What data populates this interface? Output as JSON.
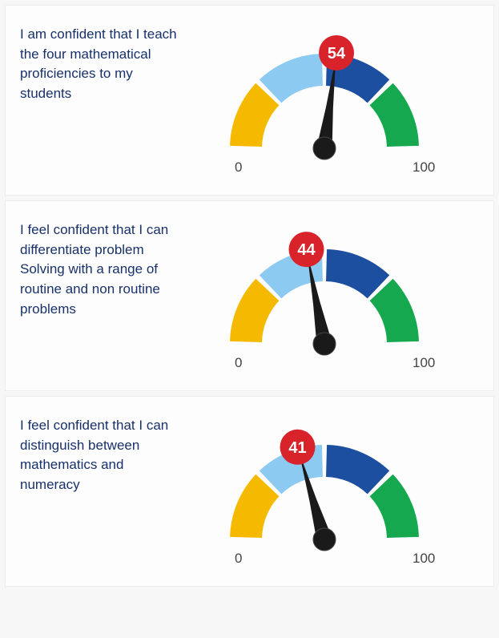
{
  "page": {
    "background_color": "#f7f7f7",
    "card_background": "#fdfdfd",
    "text_color": "#18316a"
  },
  "gauge_common": {
    "min_label": "0",
    "max_label": "100",
    "segments": [
      {
        "from_deg": 180,
        "to_deg": 135,
        "color": "#f5b900"
      },
      {
        "from_deg": 135,
        "to_deg": 90,
        "color": "#8dcaf2"
      },
      {
        "from_deg": 90,
        "to_deg": 45,
        "color": "#1d4fa0"
      },
      {
        "from_deg": 45,
        "to_deg": 0,
        "color": "#15a84f"
      }
    ],
    "arc_thickness": 40,
    "outer_radius": 118,
    "inner_radius": 78,
    "gap_deg": 3,
    "needle_color": "#1a1a1a",
    "needle_hub_stroke": "#444444",
    "badge_fill": "#d8232a",
    "badge_text_color": "#ffffff",
    "badge_radius": 22,
    "tick_color": "#444444",
    "tick_fontsize": 17
  },
  "items": [
    {
      "label": "I am confident that I teach the four mathematical proficiencies to my students",
      "value": 54
    },
    {
      "label": "I feel confident that I can differentiate problem Solving with a range of routine and non routine problems",
      "value": 44
    },
    {
      "label": "I feel confident that I can distinguish between mathematics and numeracy",
      "value": 41
    }
  ]
}
